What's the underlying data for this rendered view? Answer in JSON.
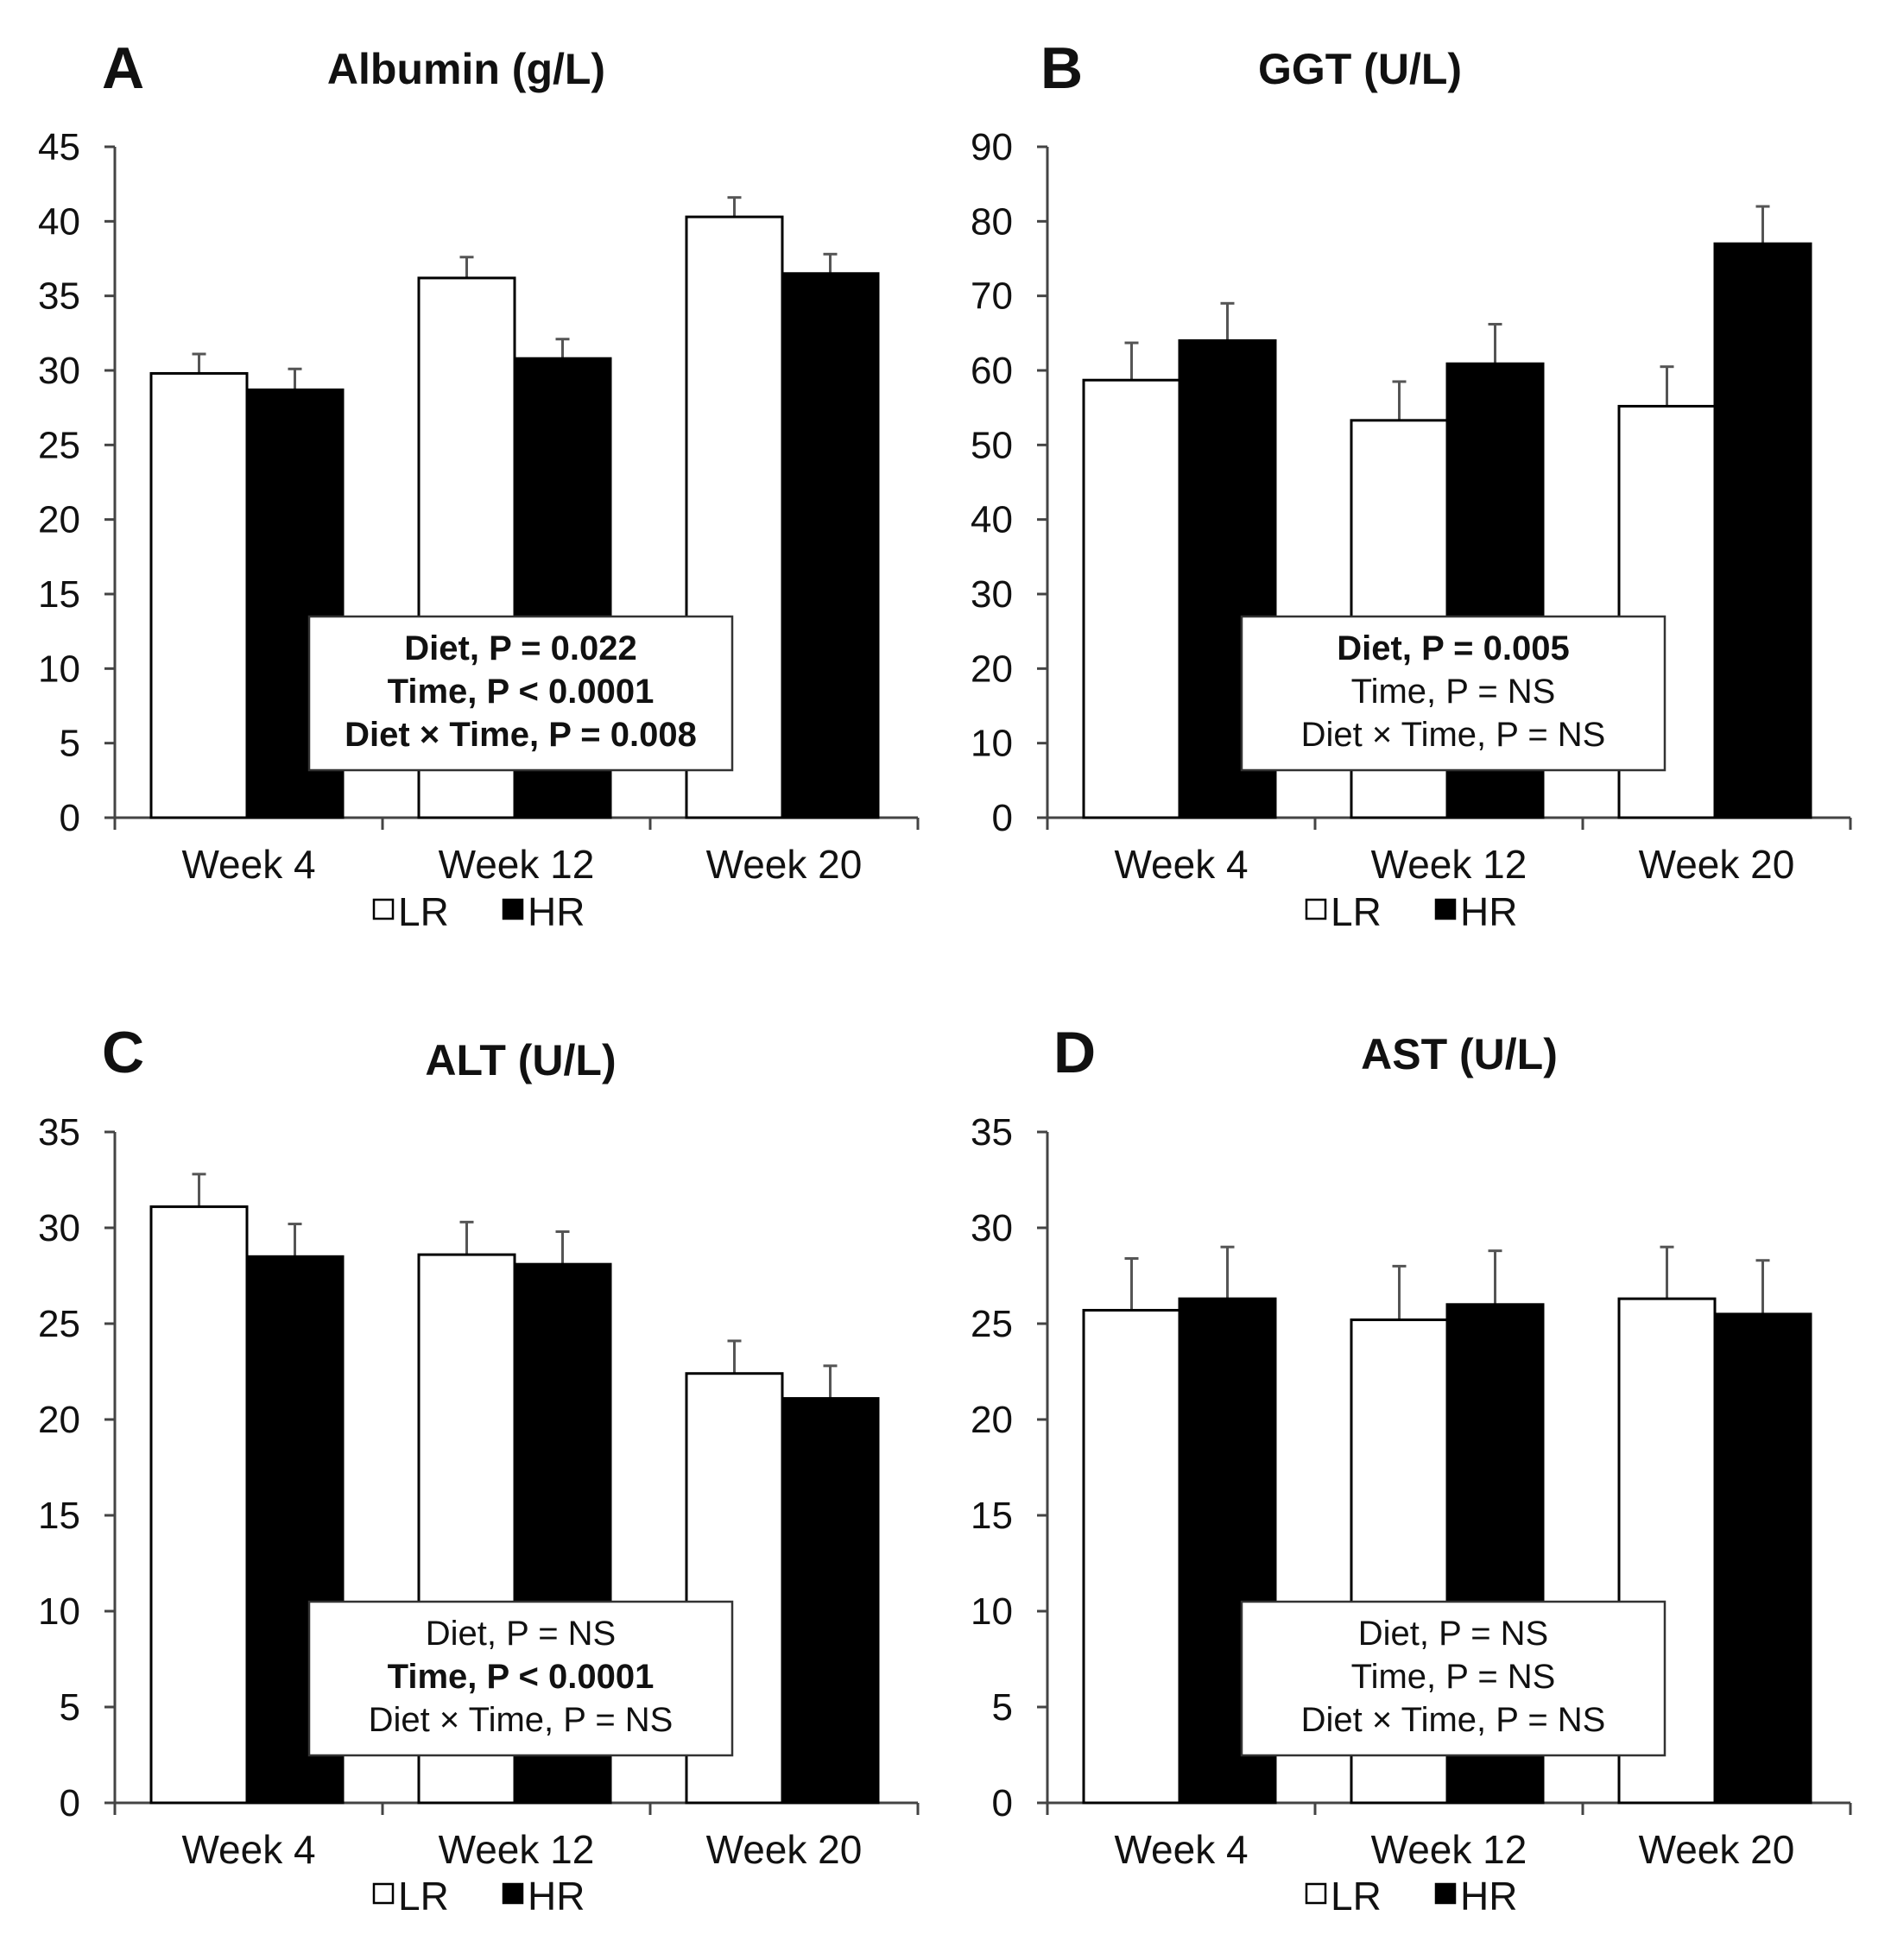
{
  "chart_data": [
    {
      "type": "bar",
      "panel": "A",
      "title": "Albumin (g/L)",
      "xlabel": "",
      "ylabel": "",
      "ylim": [
        0,
        45
      ],
      "yticks": [
        0,
        5,
        10,
        15,
        20,
        25,
        30,
        35,
        40,
        45
      ],
      "categories": [
        "Week 4",
        "Week 12",
        "Week 20"
      ],
      "series": [
        {
          "name": "LR",
          "fill": "#ffffff",
          "values": [
            29.8,
            36.2,
            40.3
          ],
          "errors": [
            1.3,
            1.4,
            1.3
          ]
        },
        {
          "name": "HR",
          "fill": "#000000",
          "values": [
            28.7,
            30.8,
            36.5
          ],
          "errors": [
            1.4,
            1.3,
            1.3
          ]
        }
      ],
      "stats": [
        {
          "text": "Diet, P = 0.022",
          "bold": true
        },
        {
          "text": "Time, P < 0.0001",
          "bold": true
        },
        {
          "text": "Diet × Time, P = 0.008",
          "bold": true
        }
      ],
      "legend": "bottom"
    },
    {
      "type": "bar",
      "panel": "B",
      "title": "GGT (U/L)",
      "xlabel": "",
      "ylabel": "",
      "ylim": [
        0,
        90
      ],
      "yticks": [
        0,
        10,
        20,
        30,
        40,
        50,
        60,
        70,
        80,
        90
      ],
      "categories": [
        "Week 4",
        "Week 12",
        "Week 20"
      ],
      "series": [
        {
          "name": "LR",
          "fill": "#ffffff",
          "values": [
            58.7,
            53.3,
            55.2
          ],
          "errors": [
            5.0,
            5.2,
            5.3
          ]
        },
        {
          "name": "HR",
          "fill": "#000000",
          "values": [
            64.0,
            60.9,
            77.0
          ],
          "errors": [
            5.0,
            5.3,
            5.0
          ]
        }
      ],
      "stats": [
        {
          "text": "Diet, P = 0.005",
          "bold": true
        },
        {
          "text": "Time, P = NS",
          "bold": false
        },
        {
          "text": "Diet × Time, P = NS",
          "bold": false
        }
      ],
      "legend": "bottom"
    },
    {
      "type": "bar",
      "panel": "C",
      "title": "ALT (U/L)",
      "xlabel": "",
      "ylabel": "",
      "ylim": [
        0,
        35
      ],
      "yticks": [
        0,
        5,
        10,
        15,
        20,
        25,
        30,
        35
      ],
      "categories": [
        "Week 4",
        "Week 12",
        "Week 20"
      ],
      "series": [
        {
          "name": "LR",
          "fill": "#ffffff",
          "values": [
            31.1,
            28.6,
            22.4
          ],
          "errors": [
            1.7,
            1.7,
            1.7
          ]
        },
        {
          "name": "HR",
          "fill": "#000000",
          "values": [
            28.5,
            28.1,
            21.1
          ],
          "errors": [
            1.7,
            1.7,
            1.7
          ]
        }
      ],
      "stats": [
        {
          "text": "Diet, P = NS",
          "bold": false
        },
        {
          "text": "Time, P < 0.0001",
          "bold": true
        },
        {
          "text": "Diet × Time, P = NS",
          "bold": false
        }
      ],
      "legend": "bottom"
    },
    {
      "type": "bar",
      "panel": "D",
      "title": "AST (U/L)",
      "xlabel": "",
      "ylabel": "",
      "ylim": [
        0,
        35
      ],
      "yticks": [
        0,
        5,
        10,
        15,
        20,
        25,
        30,
        35
      ],
      "categories": [
        "Week 4",
        "Week 12",
        "Week 20"
      ],
      "series": [
        {
          "name": "LR",
          "fill": "#ffffff",
          "values": [
            25.7,
            25.2,
            26.3
          ],
          "errors": [
            2.7,
            2.8,
            2.7
          ]
        },
        {
          "name": "HR",
          "fill": "#000000",
          "values": [
            26.3,
            26.0,
            25.5
          ],
          "errors": [
            2.7,
            2.8,
            2.8
          ]
        }
      ],
      "stats": [
        {
          "text": "Diet, P = NS",
          "bold": false
        },
        {
          "text": "Time, P = NS",
          "bold": false
        },
        {
          "text": "Diet × Time, P = NS",
          "bold": false
        }
      ],
      "legend": "bottom"
    }
  ]
}
